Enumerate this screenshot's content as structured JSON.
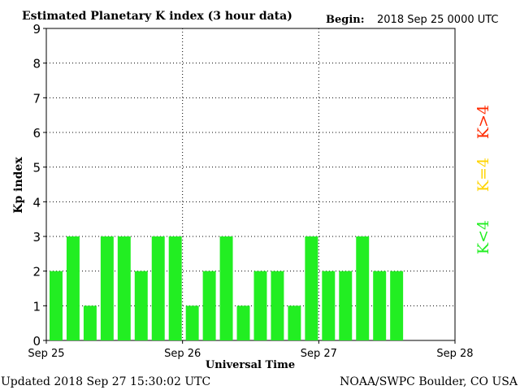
{
  "header": {
    "title": "Estimated Planetary K index (3 hour data)",
    "begin_label": "Begin:",
    "begin_value": "2018 Sep 25 0000 UTC"
  },
  "footer": {
    "updated": "Updated 2018 Sep 27 15:30:02 UTC",
    "source": "NOAA/SWPC Boulder, CO USA"
  },
  "legend": [
    {
      "label": "K>4",
      "color": "#ff2a00"
    },
    {
      "label": "K=4",
      "color": "#ffd400"
    },
    {
      "label": "K<4",
      "color": "#22ee22"
    }
  ],
  "chart_data": {
    "type": "bar",
    "title": "Estimated Planetary K index (3 hour data)",
    "xlabel": "Universal Time",
    "ylabel": "Kp index",
    "ylim": [
      0,
      9
    ],
    "yticks": [
      "0",
      "1",
      "2",
      "3",
      "4",
      "5",
      "6",
      "7",
      "8",
      "9"
    ],
    "xticks": [
      "Sep 25",
      "Sep 26",
      "Sep 27",
      "Sep 28"
    ],
    "grid": true,
    "bar_color": "#22ee22",
    "periods_per_day": 8,
    "days": 3,
    "values": [
      2,
      3,
      1,
      3,
      3,
      2,
      3,
      3,
      1,
      2,
      3,
      1,
      2,
      2,
      1,
      3,
      2,
      2,
      3,
      2,
      2
    ]
  }
}
